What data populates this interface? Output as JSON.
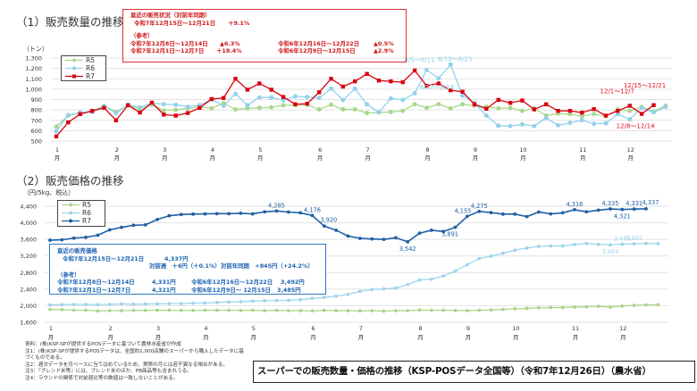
{
  "section1": {
    "title": "（1）販売数量の推移",
    "status_box": {
      "heading": "直近の販売状況（対前年同期）",
      "latest_period": "令和7年12月15日～12月21日",
      "latest_change": "＋9.1%",
      "ref_heading": "（参考）",
      "refs": [
        {
          "period": "令和7年12月8日～12月14日",
          "change": "▲6.3%",
          "prev_period": "令和6年12月16日～12月22日",
          "prev_change": "▲0.5%"
        },
        {
          "period": "令和7年12月1日～12月7日",
          "change": "＋18.4%",
          "prev_period": "令和6年12月9日～12月15日",
          "prev_change": "▲2.9%"
        }
      ]
    }
  },
  "section2": {
    "title": "（2）販売価格の推移",
    "price_box": {
      "heading": "直近の販売価格",
      "latest_period": "令和7年12月15日～12月21日",
      "latest_price": "4,337円",
      "wow": "対前週　＋6円（＋0.1%）",
      "yoy": "対前年同期　+845円（+24.2%）",
      "ref_heading": "（参考）",
      "refs": [
        {
          "period": "令和7年12月8日～12月14日",
          "price": "4,331円",
          "prev_period": "令和6年12月16日～12月22日",
          "prev_price": "3,492円"
        },
        {
          "period": "令和7年12月1日～12月7日",
          "price": "4,321円",
          "prev_period": "令和6年12月9日～ 12月15日",
          "prev_price": "3,485円"
        }
      ]
    }
  },
  "notes": [
    "資料：(株)KSP-SPが提供するPOSデータに基づいて農林水産省が作成",
    "注1：(株)KSP-SPが提供するPOSデータは、全国約1,000店舗のスーパーから購入したデータに基づくものである。",
    "注2：週次データを月ベースに当てはめているため、実際の月とは若干異なる場合がある。",
    "注3：『ブレンド米等』には、ブレンド米のほか、PB商品等も含まれうる。",
    "注4：ラウンドの関係で対前週比等の数値は一致しないことがある。"
  ],
  "footer_title": "スーパーでの販売数量・価格の推移（KSP-POSデータ全国等）（令和7年12月26日）（農水省）",
  "chart_data": [
    {
      "type": "line",
      "ylabel": "（トン）",
      "ylim": [
        500,
        1300
      ],
      "yticks": [
        500,
        600,
        700,
        800,
        900,
        1000,
        1100,
        1200,
        1300
      ],
      "ytick_labels": [
        "500",
        "600",
        "700",
        "800",
        "900",
        "1,000",
        "1,100",
        "1,200",
        "1,300"
      ],
      "x_unit": "週",
      "month_labels": [
        "1",
        "2",
        "3",
        "4",
        "5",
        "6",
        "7",
        "8",
        "9",
        "10",
        "11",
        "12"
      ],
      "month_suffix": "月",
      "grid": true,
      "legend": "top-left",
      "series": [
        {
          "name": "R5",
          "color": "#a9d88c",
          "marker": "circle",
          "values": [
            640,
            745,
            770,
            790,
            840,
            780,
            845,
            805,
            850,
            795,
            800,
            815,
            830,
            815,
            865,
            805,
            815,
            820,
            825,
            845,
            845,
            850,
            805,
            850,
            805,
            805,
            770,
            775,
            780,
            790,
            855,
            820,
            855,
            815,
            855,
            840,
            830,
            815,
            820,
            790,
            815,
            745,
            765,
            760,
            740,
            760,
            740,
            805,
            790,
            830,
            785,
            840
          ]
        },
        {
          "name": "R6",
          "color": "#92d1ec",
          "marker": "circle",
          "values": [
            595,
            750,
            775,
            780,
            835,
            770,
            850,
            825,
            865,
            855,
            850,
            830,
            845,
            900,
            840,
            955,
            845,
            920,
            920,
            895,
            930,
            925,
            915,
            1005,
            895,
            1004,
            854,
            776,
            911,
            897,
            960,
            1185,
            1104,
            1237,
            937,
            868,
            745,
            647,
            644,
            661,
            644,
            724,
            652,
            675,
            701,
            667,
            672,
            759,
            710,
            819,
            776,
            830
          ]
        },
        {
          "name": "R7",
          "color": "#d9000f",
          "marker": "square",
          "values": [
            545,
            680,
            760,
            790,
            820,
            700,
            845,
            775,
            870,
            755,
            745,
            770,
            820,
            905,
            915,
            1100,
            995,
            1055,
            995,
            925,
            855,
            860,
            970,
            1100,
            1025,
            1075,
            1147,
            1083,
            1075,
            1067,
            1180,
            1032,
            1055,
            989,
            975,
            854,
            811,
            897,
            868,
            891,
            805,
            854,
            791,
            791,
            774,
            808,
            745,
            791,
            840,
            762,
            846
          ]
        }
      ],
      "annotations": [
        {
          "text": "8/5～8/11",
          "series": "R6",
          "week": 31
        },
        {
          "text": "8/12～8/18",
          "series": "R6",
          "week": 32
        },
        {
          "text": "8/19～8/25",
          "series": "R6",
          "week": 33
        },
        {
          "text": "12/1～12/7",
          "series": "R7",
          "week": 48
        },
        {
          "text": "12/8～12/14",
          "series": "R7",
          "week": 49
        },
        {
          "text": "12/15～12/21",
          "series": "R7",
          "week": 50
        }
      ]
    },
    {
      "type": "line",
      "ylabel": "（円/5kg、税込）",
      "ylim": [
        1600,
        4400
      ],
      "yticks": [
        1600,
        2000,
        2400,
        2800,
        3200,
        3600,
        4000,
        4400
      ],
      "ytick_labels": [
        "1,600",
        "2,000",
        "2,400",
        "2,800",
        "3,200",
        "3,600",
        "4,000",
        "4,400"
      ],
      "month_labels": [
        "1",
        "2",
        "3",
        "4",
        "5",
        "6",
        "7",
        "8",
        "9",
        "10",
        "11",
        "12"
      ],
      "month_suffix": "月",
      "grid": true,
      "legend": "top-left",
      "series": [
        {
          "name": "R5",
          "color": "#a9d68b",
          "marker": "circle",
          "values": [
            1910,
            1905,
            1890,
            1890,
            1875,
            1880,
            1880,
            1885,
            1885,
            1890,
            1890,
            1885,
            1885,
            1890,
            1890,
            1890,
            1885,
            1890,
            1880,
            1885,
            1880,
            1880,
            1875,
            1885,
            1880,
            1880,
            1875,
            1880,
            1870,
            1880,
            1880,
            1895,
            1890,
            1890,
            1885,
            1880,
            1890,
            1895,
            1910,
            1925,
            1935,
            1950,
            1955,
            1955,
            1965,
            1975,
            1985,
            1965,
            1990,
            2010,
            2020,
            2025
          ]
        },
        {
          "name": "R6",
          "color": "#9dd4ea",
          "marker": "circle",
          "values": [
            2020,
            2025,
            2030,
            2030,
            2025,
            2030,
            2045,
            2035,
            2040,
            2045,
            2050,
            2050,
            2060,
            2065,
            2080,
            2090,
            2095,
            2110,
            2120,
            2125,
            2130,
            2145,
            2175,
            2200,
            2230,
            2275,
            2345,
            2390,
            2405,
            2425,
            2510,
            2620,
            2640,
            2720,
            2835,
            2990,
            3135,
            3195,
            3265,
            3340,
            3390,
            3430,
            3440,
            3445,
            3475,
            3500,
            3480,
            3469,
            3485,
            3492,
            3500,
            3495
          ]
        },
        {
          "name": "R7",
          "color": "#1f5fa6",
          "marker": "circle",
          "values": [
            3580,
            3590,
            3630,
            3650,
            3700,
            3830,
            3890,
            3940,
            3950,
            4080,
            4170,
            4200,
            4210,
            4215,
            4220,
            4220,
            4230,
            4215,
            4265,
            4285,
            4260,
            4240,
            4176,
            3920,
            3820,
            3680,
            3625,
            3610,
            3600,
            3640,
            3542,
            3750,
            3820,
            3790,
            3891,
            4155,
            4275,
            4245,
            4210,
            4210,
            4150,
            4260,
            4215,
            4240,
            4316,
            4265,
            4305,
            4335,
            4321,
            4331,
            4337
          ]
        }
      ],
      "data_labels": [
        {
          "series": "R7",
          "week": 19,
          "text": "4,285",
          "pos": "above"
        },
        {
          "series": "R7",
          "week": 22,
          "text": "4,176",
          "pos": "above"
        },
        {
          "series": "R7",
          "week": 23,
          "text": "3,920",
          "pos": "above-right"
        },
        {
          "series": "R7",
          "week": 30,
          "text": "3,542",
          "pos": "below"
        },
        {
          "series": "R7",
          "week": 34,
          "text": "3,891",
          "pos": "below-left"
        },
        {
          "series": "R7",
          "week": 35,
          "text": "4,155",
          "pos": "above-left"
        },
        {
          "series": "R7",
          "week": 36,
          "text": "4,275",
          "pos": "above"
        },
        {
          "series": "R7",
          "week": 44,
          "text": "4,316",
          "pos": "above"
        },
        {
          "series": "R7",
          "week": 47,
          "text": "4,335",
          "pos": "above"
        },
        {
          "series": "R7",
          "week": 48,
          "text": "4,321",
          "pos": "below"
        },
        {
          "series": "R7",
          "week": 49,
          "text": "4,331",
          "pos": "above"
        },
        {
          "series": "R7",
          "week": 50,
          "text": "4,337",
          "pos": "above-right"
        },
        {
          "series": "R6",
          "week": 47,
          "text": "3,469",
          "pos": "below"
        },
        {
          "series": "R6",
          "week": 48,
          "text": "3,485",
          "pos": "above"
        },
        {
          "series": "R6",
          "week": 49,
          "text": "3,492",
          "pos": "above"
        }
      ]
    }
  ]
}
